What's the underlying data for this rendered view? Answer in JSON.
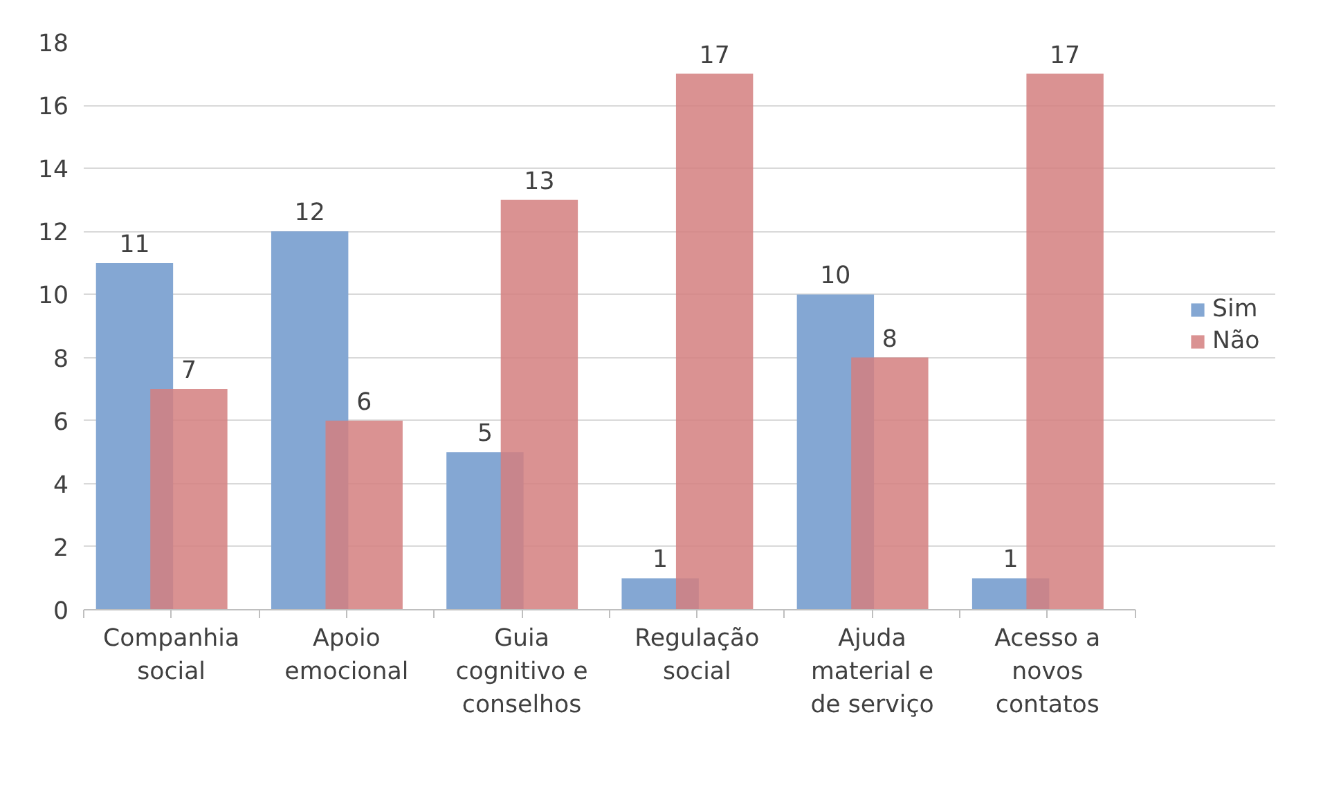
{
  "chart_data": {
    "type": "bar",
    "categories": [
      "Companhia social",
      "Apoio emocional",
      "Guia cognitivo e conselhos",
      "Regulação social",
      "Ajuda material e de serviço",
      "Acesso a novos contatos"
    ],
    "series": [
      {
        "name": "Sim",
        "color": "#84a7d3",
        "values": [
          11,
          12,
          5,
          1,
          10,
          1
        ]
      },
      {
        "name": "Não",
        "color": "#d47f7f",
        "values": [
          7,
          6,
          13,
          17,
          8,
          17
        ]
      }
    ],
    "ylim": [
      0,
      18
    ],
    "yticks": [
      0,
      2,
      4,
      6,
      8,
      10,
      12,
      14,
      16,
      18
    ],
    "grid": "y",
    "legend": "right",
    "data_labels": true
  }
}
